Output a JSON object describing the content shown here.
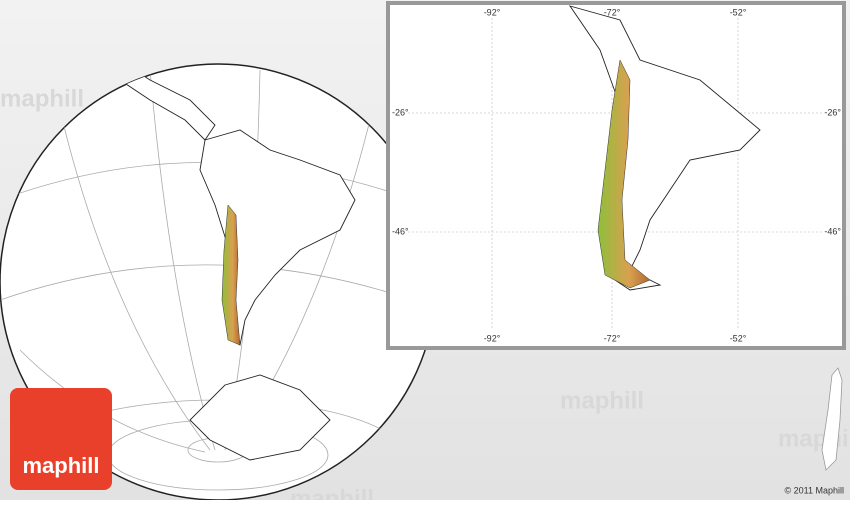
{
  "logo": "maphill",
  "watermarks": [
    "maphill",
    "maphill",
    "maphill",
    "maphill"
  ],
  "inset": {
    "top_labels": [
      "-92°",
      "-72°",
      "-52°"
    ],
    "bottom_labels": [
      "-92°",
      "-72°",
      "-52°"
    ],
    "left_labels": [
      "-26°",
      "-46°"
    ],
    "right_labels": [
      "-26°",
      "-46°"
    ]
  },
  "copyright": "© 2011 Maphill"
}
